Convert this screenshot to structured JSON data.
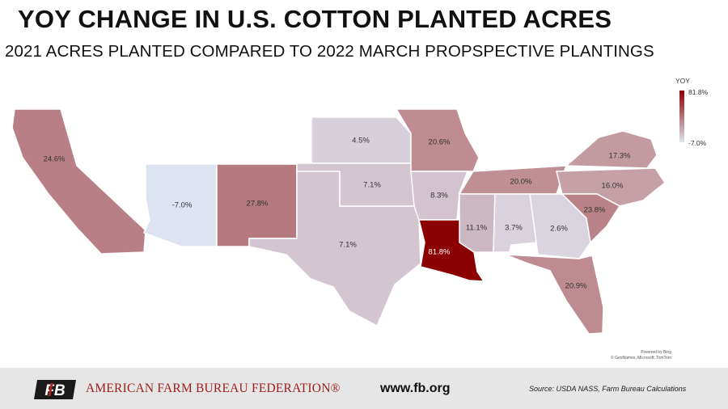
{
  "header": {
    "title": "YOY CHANGE IN U.S. COTTON PLANTED ACRES",
    "subtitle": "2021 ACRES PLANTED COMPARED TO 2022 MARCH PROPSPECTIVE PLANTINGS"
  },
  "legend": {
    "title": "YOY",
    "max": "81.8%",
    "min": "-7.0%",
    "color_max": "#8b0000",
    "color_min": "#dde3f1"
  },
  "map": {
    "credit_line1": "Powered by Bing",
    "credit_line2": "© GeoNames, Microsoft, TomTom",
    "states": [
      {
        "name": "California",
        "value": "24.6%",
        "color": "#b97f86"
      },
      {
        "name": "Arizona",
        "value": "-7.0%",
        "color": "#dde3f1"
      },
      {
        "name": "New Mexico",
        "value": "27.8%",
        "color": "#b47a80"
      },
      {
        "name": "Texas",
        "value": "7.1%",
        "color": "#d3c6d1"
      },
      {
        "name": "Oklahoma",
        "value": "7.1%",
        "color": "#d3c6d1"
      },
      {
        "name": "Kansas",
        "value": "4.5%",
        "color": "#d7cfda"
      },
      {
        "name": "Missouri",
        "value": "20.6%",
        "color": "#bf8c93"
      },
      {
        "name": "Arkansas",
        "value": "8.3%",
        "color": "#d2c3ce"
      },
      {
        "name": "Louisiana",
        "value": "81.8%",
        "color": "#8b0000"
      },
      {
        "name": "Mississippi",
        "value": "11.1%",
        "color": "#ccb8c2"
      },
      {
        "name": "Alabama",
        "value": "3.7%",
        "color": "#d9d2dc"
      },
      {
        "name": "Georgia",
        "value": "2.6%",
        "color": "#dad4de"
      },
      {
        "name": "Tennessee",
        "value": "20.0%",
        "color": "#c08e95"
      },
      {
        "name": "Virginia",
        "value": "17.3%",
        "color": "#c49aa1"
      },
      {
        "name": "North Carolina",
        "value": "16.0%",
        "color": "#c6a0a7"
      },
      {
        "name": "South Carolina",
        "value": "23.8%",
        "color": "#ba8289"
      },
      {
        "name": "Florida",
        "value": "20.9%",
        "color": "#bf8b92"
      }
    ]
  },
  "footer": {
    "logo_text": "FB",
    "organization": "AMERICAN FARM BUREAU FEDERATION®",
    "url": "www.fb.org",
    "source": "Source: USDA NASS, Farm Bureau Calculations"
  }
}
